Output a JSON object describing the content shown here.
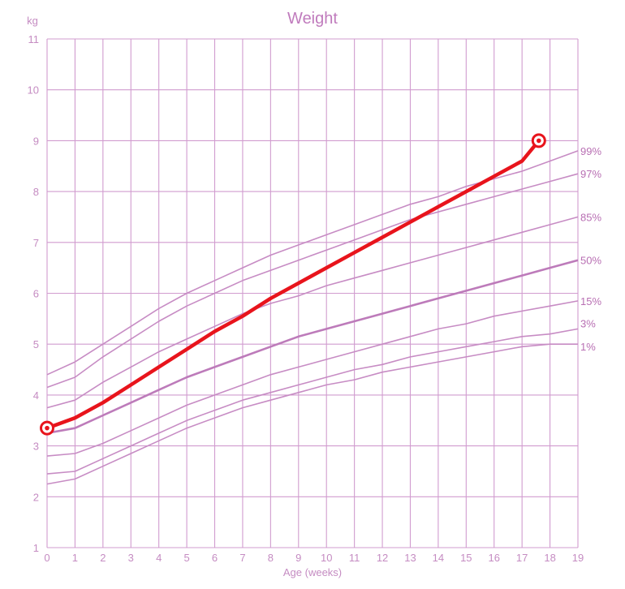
{
  "chart_data": {
    "type": "line",
    "title": "Weight",
    "xlabel": "Age (weeks)",
    "ylabel": "kg",
    "xlim": [
      0,
      19
    ],
    "ylim": [
      1,
      11
    ],
    "x_ticks": [
      0,
      1,
      2,
      3,
      4,
      5,
      6,
      7,
      8,
      9,
      10,
      11,
      12,
      13,
      14,
      15,
      16,
      17,
      18,
      19
    ],
    "y_ticks": [
      1,
      2,
      3,
      4,
      5,
      6,
      7,
      8,
      9,
      10,
      11
    ],
    "grid": true,
    "colors": {
      "grid": "#d19ccf",
      "percentile": "#c78cc4",
      "median": "#bd7bba",
      "label": "#c58cc2",
      "patient": "#e8141c"
    },
    "percentiles": [
      {
        "name": "99%",
        "x": [
          0,
          1,
          2,
          3,
          4,
          5,
          6,
          7,
          8,
          9,
          10,
          11,
          12,
          13,
          14,
          15,
          16,
          17,
          18,
          19
        ],
        "values": [
          4.4,
          4.65,
          5.0,
          5.35,
          5.7,
          6.0,
          6.25,
          6.5,
          6.75,
          6.95,
          7.15,
          7.35,
          7.55,
          7.75,
          7.9,
          8.1,
          8.25,
          8.4,
          8.6,
          8.8
        ]
      },
      {
        "name": "97%",
        "x": [
          0,
          1,
          2,
          3,
          4,
          5,
          6,
          7,
          8,
          9,
          10,
          11,
          12,
          13,
          14,
          15,
          16,
          17,
          18,
          19
        ],
        "values": [
          4.15,
          4.35,
          4.75,
          5.1,
          5.45,
          5.75,
          6.0,
          6.25,
          6.45,
          6.65,
          6.85,
          7.05,
          7.25,
          7.45,
          7.6,
          7.75,
          7.9,
          8.05,
          8.2,
          8.35
        ]
      },
      {
        "name": "85%",
        "x": [
          0,
          1,
          2,
          3,
          4,
          5,
          6,
          7,
          8,
          9,
          10,
          11,
          12,
          13,
          14,
          15,
          16,
          17,
          18,
          19
        ],
        "values": [
          3.75,
          3.9,
          4.25,
          4.55,
          4.85,
          5.1,
          5.35,
          5.6,
          5.8,
          5.95,
          6.15,
          6.3,
          6.45,
          6.6,
          6.75,
          6.9,
          7.05,
          7.2,
          7.35,
          7.5
        ]
      },
      {
        "name": "50%",
        "x": [
          0,
          1,
          2,
          3,
          4,
          5,
          6,
          7,
          8,
          9,
          10,
          11,
          12,
          13,
          14,
          15,
          16,
          17,
          18,
          19
        ],
        "values": [
          3.25,
          3.35,
          3.6,
          3.85,
          4.1,
          4.35,
          4.55,
          4.75,
          4.95,
          5.15,
          5.3,
          5.45,
          5.6,
          5.75,
          5.9,
          6.05,
          6.2,
          6.35,
          6.5,
          6.65
        ]
      },
      {
        "name": "15%",
        "x": [
          0,
          1,
          2,
          3,
          4,
          5,
          6,
          7,
          8,
          9,
          10,
          11,
          12,
          13,
          14,
          15,
          16,
          17,
          18,
          19
        ],
        "values": [
          2.8,
          2.85,
          3.05,
          3.3,
          3.55,
          3.8,
          4.0,
          4.2,
          4.4,
          4.55,
          4.7,
          4.85,
          5.0,
          5.15,
          5.3,
          5.4,
          5.55,
          5.65,
          5.75,
          5.85
        ]
      },
      {
        "name": "3%",
        "x": [
          0,
          1,
          2,
          3,
          4,
          5,
          6,
          7,
          8,
          9,
          10,
          11,
          12,
          13,
          14,
          15,
          16,
          17,
          18,
          19
        ],
        "values": [
          2.45,
          2.5,
          2.75,
          3.0,
          3.25,
          3.5,
          3.7,
          3.9,
          4.05,
          4.2,
          4.35,
          4.5,
          4.6,
          4.75,
          4.85,
          4.95,
          5.05,
          5.15,
          5.2,
          5.3
        ]
      },
      {
        "name": "1%",
        "x": [
          0,
          1,
          2,
          3,
          4,
          5,
          6,
          7,
          8,
          9,
          10,
          11,
          12,
          13,
          14,
          15,
          16,
          17,
          18,
          19
        ],
        "values": [
          2.25,
          2.35,
          2.6,
          2.85,
          3.1,
          3.35,
          3.55,
          3.75,
          3.9,
          4.05,
          4.2,
          4.3,
          4.45,
          4.55,
          4.65,
          4.75,
          4.85,
          4.95,
          5.0,
          5.0
        ]
      }
    ],
    "series": [
      {
        "name": "patient",
        "x": [
          0,
          1,
          2,
          3,
          4,
          5,
          6,
          7,
          8,
          9,
          10,
          11,
          12,
          13,
          14,
          15,
          16,
          17,
          17.6
        ],
        "values": [
          3.35,
          3.55,
          3.85,
          4.2,
          4.55,
          4.9,
          5.25,
          5.55,
          5.9,
          6.2,
          6.5,
          6.8,
          7.1,
          7.4,
          7.7,
          8.0,
          8.3,
          8.6,
          9.0
        ]
      }
    ]
  }
}
